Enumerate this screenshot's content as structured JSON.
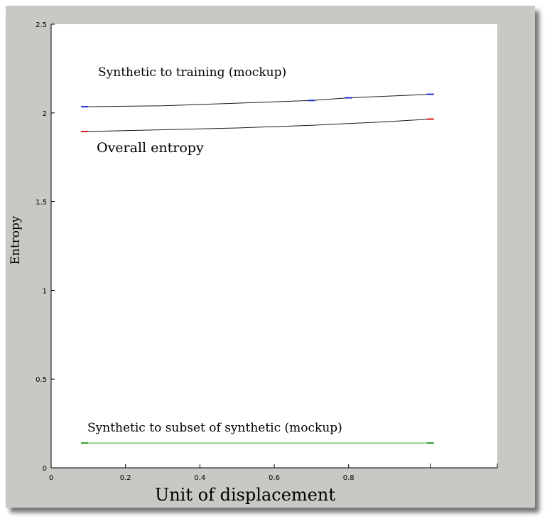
{
  "chart_data": {
    "type": "line",
    "title": "",
    "xlabel": "Unit of displacement",
    "ylabel": "Entropy",
    "xlim": [
      0,
      1.2
    ],
    "ylim": [
      0,
      2.5
    ],
    "x_ticks": [
      0,
      0.2,
      0.4,
      0.6,
      0.8
    ],
    "x_tick_labels": [
      "0",
      "0.2",
      "0.4",
      "0.6",
      "0.8"
    ],
    "y_ticks": [
      0,
      0.5,
      1,
      1.5,
      2,
      2.5
    ],
    "y_tick_labels": [
      "0",
      "0.5",
      "1",
      "1.5",
      "2",
      "2.5"
    ],
    "grid": false,
    "series": [
      {
        "name": "Synthetic to training (mockup)",
        "color": "#1a1a1a",
        "marker_color": "#1f2bd6",
        "x": [
          0.09,
          0.3,
          0.5,
          0.7,
          0.8,
          1.02
        ],
        "y": [
          2.035,
          2.04,
          2.055,
          2.07,
          2.085,
          2.105
        ]
      },
      {
        "name": "Overall entropy",
        "color": "#1a1a1a",
        "marker_color": "#d11a1a",
        "x": [
          0.09,
          0.3,
          0.5,
          0.7,
          0.9,
          1.02
        ],
        "y": [
          1.895,
          1.905,
          1.915,
          1.93,
          1.95,
          1.965
        ]
      },
      {
        "name": "Synthetic to subset of synthetic (mockup)",
        "color": "#2ea02e",
        "marker_color": "#2ea02e",
        "x": [
          0.09,
          0.5,
          1.02
        ],
        "y": [
          0.14,
          0.14,
          0.14
        ]
      }
    ]
  }
}
